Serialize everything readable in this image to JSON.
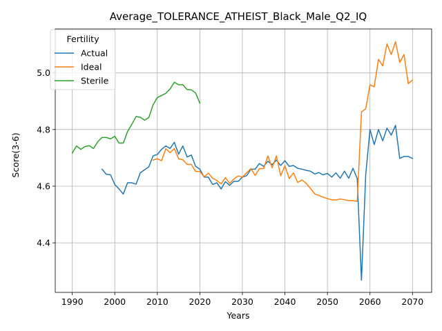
{
  "chart_data": {
    "type": "line",
    "title": "Average_TOLERANCE_ATHEIST_Black_Male_Q2_IQ",
    "xlabel": "Years",
    "ylabel": "Score(3-6)",
    "xlim": [
      1986,
      2074.5
    ],
    "ylim": [
      4.225,
      5.155
    ],
    "xticks": [
      1990,
      2000,
      2010,
      2020,
      2030,
      2040,
      2050,
      2060,
      2070
    ],
    "yticks": [
      4.4,
      4.6,
      4.8,
      5.0
    ],
    "ytick_labels": [
      "4.4",
      "4.6",
      "4.8",
      "5.0"
    ],
    "grid": true,
    "legend": {
      "title": "Fertility",
      "placement": "top-left",
      "entries": [
        "Actual",
        "Ideal",
        "Sterile"
      ]
    },
    "series": [
      {
        "name": "Actual",
        "color": "#1f77b4",
        "x": [
          1997,
          1998,
          1999,
          2000,
          2001,
          2002,
          2003,
          2004,
          2005,
          2006,
          2007,
          2008,
          2009,
          2010,
          2011,
          2012,
          2013,
          2014,
          2015,
          2016,
          2017,
          2018,
          2019,
          2020,
          2021,
          2022,
          2023,
          2024,
          2025,
          2026,
          2027,
          2028,
          2029,
          2030,
          2031,
          2032,
          2033,
          2034,
          2035,
          2036,
          2037,
          2038,
          2039,
          2040,
          2041,
          2042,
          2043,
          2044,
          2045,
          2046,
          2047,
          2048,
          2049,
          2050,
          2051,
          2052,
          2053,
          2054,
          2055,
          2056,
          2057,
          2058,
          2059,
          2060,
          2061,
          2062,
          2063,
          2064,
          2065,
          2066,
          2067,
          2068,
          2069,
          2070
        ],
        "y": [
          4.66,
          4.642,
          4.64,
          4.606,
          4.59,
          4.572,
          4.612,
          4.612,
          4.607,
          4.647,
          4.658,
          4.668,
          4.707,
          4.712,
          4.73,
          4.742,
          4.733,
          4.755,
          4.713,
          4.742,
          4.703,
          4.71,
          4.67,
          4.66,
          4.632,
          4.632,
          4.606,
          4.612,
          4.59,
          4.616,
          4.603,
          4.617,
          4.617,
          4.632,
          4.637,
          4.66,
          4.66,
          4.68,
          4.67,
          4.688,
          4.676,
          4.692,
          4.673,
          4.69,
          4.67,
          4.673,
          4.663,
          4.66,
          4.656,
          4.653,
          4.643,
          4.648,
          4.64,
          4.645,
          4.632,
          4.647,
          4.628,
          4.653,
          4.628,
          4.663,
          4.627,
          4.268,
          4.64,
          4.8,
          4.747,
          4.8,
          4.76,
          4.805,
          4.78,
          4.815,
          4.698,
          4.705,
          4.705,
          4.698
        ]
      },
      {
        "name": "Ideal",
        "color": "#ff7f0e",
        "x": [
          2009,
          2010,
          2011,
          2012,
          2013,
          2014,
          2015,
          2016,
          2017,
          2018,
          2019,
          2020,
          2021,
          2022,
          2023,
          2024,
          2025,
          2026,
          2027,
          2028,
          2029,
          2030,
          2031,
          2032,
          2033,
          2034,
          2035,
          2036,
          2037,
          2038,
          2039,
          2040,
          2041,
          2042,
          2043,
          2044,
          2045,
          2046,
          2047,
          2048,
          2049,
          2050,
          2051,
          2052,
          2053,
          2054,
          2055,
          2056,
          2057,
          2058,
          2059,
          2060,
          2061,
          2062,
          2063,
          2064,
          2065,
          2066,
          2067,
          2068,
          2069,
          2070
        ],
        "y": [
          4.692,
          4.697,
          4.69,
          4.732,
          4.718,
          4.733,
          4.697,
          4.693,
          4.677,
          4.677,
          4.652,
          4.652,
          4.633,
          4.646,
          4.628,
          4.62,
          4.608,
          4.63,
          4.61,
          4.625,
          4.636,
          4.632,
          4.647,
          4.662,
          4.638,
          4.662,
          4.662,
          4.707,
          4.665,
          4.707,
          4.637,
          4.672,
          4.627,
          4.647,
          4.613,
          4.622,
          4.61,
          4.592,
          4.573,
          4.567,
          4.561,
          4.556,
          4.552,
          4.551,
          4.555,
          4.552,
          4.549,
          4.549,
          4.546,
          4.862,
          4.873,
          4.958,
          4.951,
          5.048,
          5.025,
          5.102,
          5.065,
          5.11,
          5.037,
          5.065,
          4.962,
          4.975
        ]
      },
      {
        "name": "Sterile",
        "color": "#2ca02c",
        "x": [
          1990,
          1991,
          1992,
          1993,
          1994,
          1995,
          1996,
          1997,
          1998,
          1999,
          2000,
          2001,
          2002,
          2003,
          2004,
          2005,
          2006,
          2007,
          2008,
          2009,
          2010,
          2011,
          2012,
          2013,
          2014,
          2015,
          2016,
          2017,
          2018,
          2019,
          2020
        ],
        "y": [
          4.717,
          4.742,
          4.73,
          4.74,
          4.743,
          4.733,
          4.757,
          4.772,
          4.772,
          4.767,
          4.776,
          4.752,
          4.752,
          4.793,
          4.818,
          4.846,
          4.843,
          4.833,
          4.842,
          4.887,
          4.913,
          4.92,
          4.928,
          4.943,
          4.967,
          4.958,
          4.958,
          4.941,
          4.94,
          4.929,
          4.893
        ]
      }
    ]
  }
}
